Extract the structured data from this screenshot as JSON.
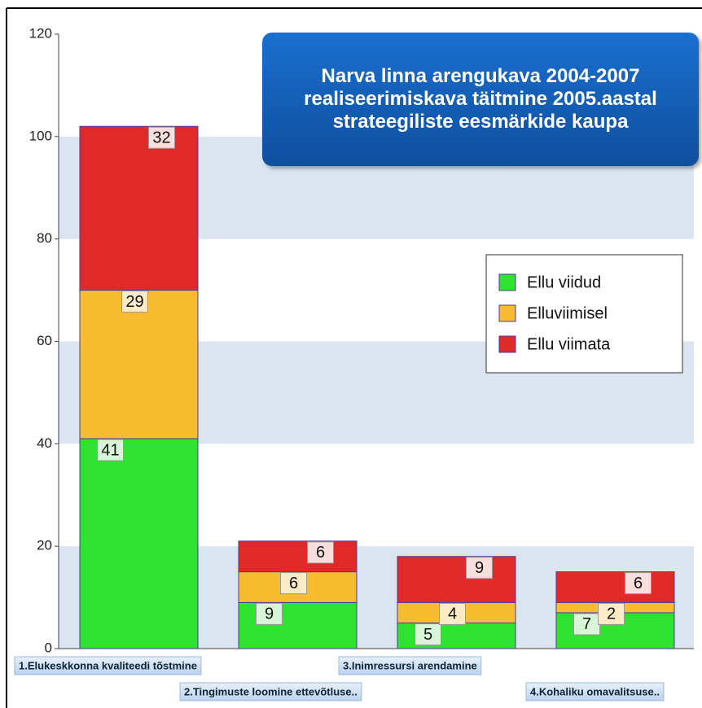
{
  "chart_data": {
    "type": "stacked_bar",
    "title": "Narva linna arengukava 2004-2007 realiseerimiskava täitmine 2005.aastal strateegiliste eesmärkide kaupa",
    "categories": [
      "1.Elukeskkonna kvaliteedi tõstmine",
      "2.Tingimuste loomine ettevõtluse..",
      "3.Inimressursi arendamine",
      "4.Kohaliku omavalitsuse.."
    ],
    "series": [
      {
        "name": "Ellu viidud",
        "color": "#2fe22f",
        "values": [
          41,
          9,
          5,
          7
        ]
      },
      {
        "name": "Elluviimisel",
        "color": "#f7bc2f",
        "values": [
          29,
          6,
          4,
          2
        ]
      },
      {
        "name": "Ellu viimata",
        "color": "#e02a2a",
        "values": [
          32,
          6,
          9,
          6
        ]
      }
    ],
    "ylim": [
      0,
      120
    ],
    "yticks": [
      0,
      20,
      40,
      60,
      80,
      100,
      120
    ],
    "grid": true,
    "legend": "right"
  }
}
